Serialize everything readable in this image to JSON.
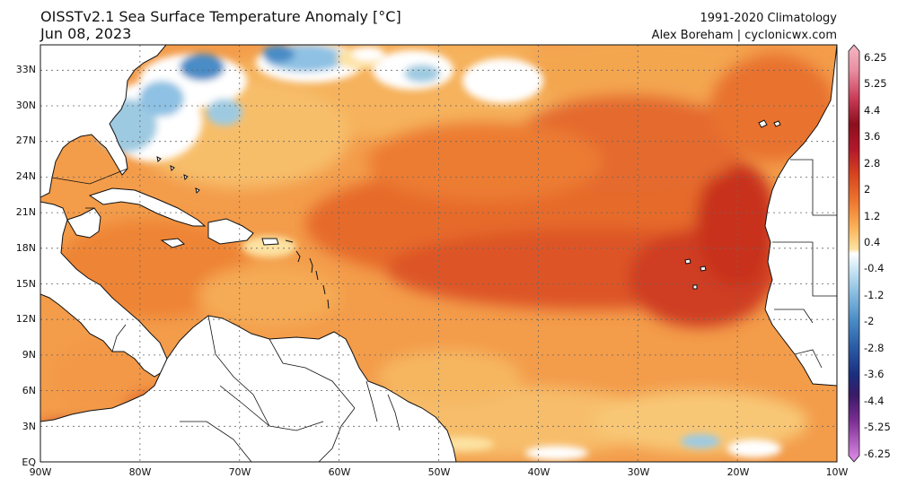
{
  "header": {
    "title": "OISSTv2.1 Sea Surface Temperature Anomaly [°C]",
    "date": "Jun 08, 2023",
    "climatology": "1991-2020 Climatology",
    "credit": "Alex Boreham | cyclonicwx.com"
  },
  "axes": {
    "lon_labels": [
      "90W",
      "80W",
      "70W",
      "60W",
      "50W",
      "40W",
      "30W",
      "20W",
      "10W"
    ],
    "lat_labels": [
      "EQ",
      "3N",
      "6N",
      "9N",
      "12N",
      "15N",
      "18N",
      "21N",
      "24N",
      "27N",
      "30N",
      "33N"
    ]
  },
  "colorbar": {
    "labels": [
      "6.25",
      "5.25",
      "4.4",
      "3.6",
      "2.8",
      "2",
      "1.2",
      "0.4",
      "-0.4",
      "-1.2",
      "-2",
      "-2.8",
      "-3.6",
      "-4.4",
      "-5.25",
      "-6.25"
    ],
    "colors": {
      "extreme_warm": "#e98fa2",
      "very_warm": "#b2182b",
      "warm": "#e8672c",
      "mild_warm": "#f5a24a",
      "slight_warm": "#fbd17c",
      "neutral": "#ffffff",
      "slight_cool": "#9ecae1",
      "cool": "#4a8cc6",
      "very_cool": "#1a2f80",
      "extreme_cool": "#b85bc3"
    }
  }
}
